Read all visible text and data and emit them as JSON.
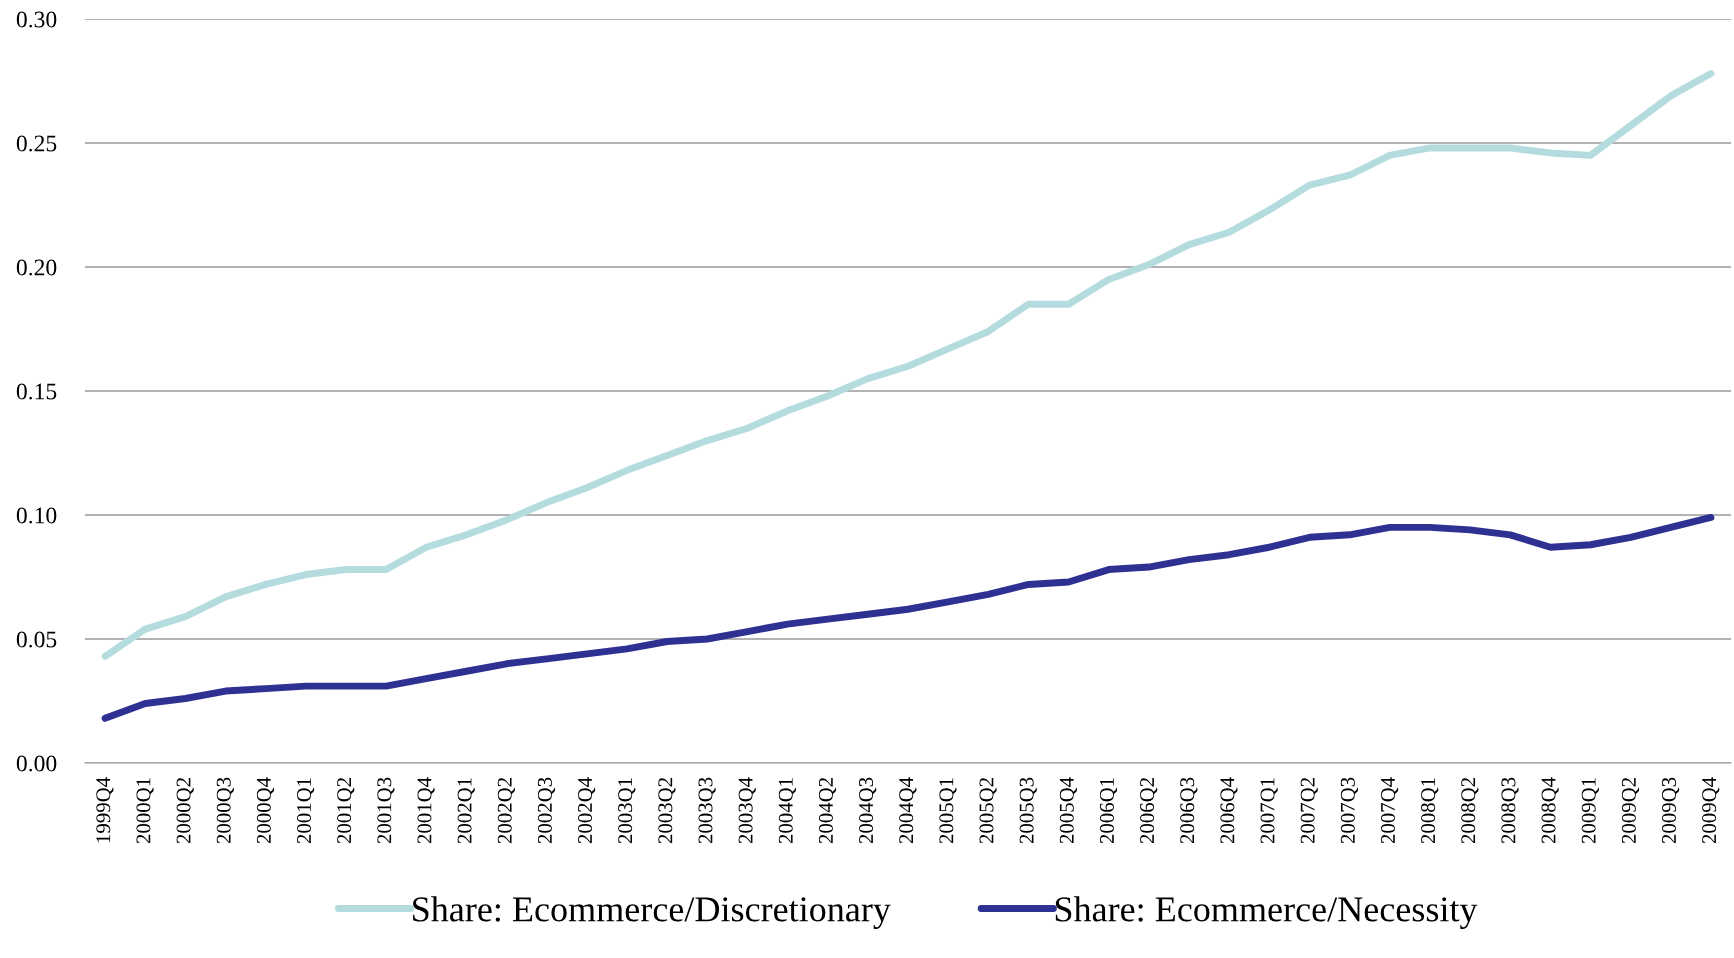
{
  "chart_data": {
    "type": "line",
    "categories": [
      "1999Q4",
      "2000Q1",
      "2000Q2",
      "2000Q3",
      "2000Q4",
      "2001Q1",
      "2001Q2",
      "2001Q3",
      "2001Q4",
      "2002Q1",
      "2002Q2",
      "2002Q3",
      "2002Q4",
      "2003Q1",
      "2003Q2",
      "2003Q3",
      "2003Q4",
      "2004Q1",
      "2004Q2",
      "2004Q3",
      "2004Q4",
      "2005Q1",
      "2005Q2",
      "2005Q3",
      "2005Q4",
      "2006Q1",
      "2006Q2",
      "2006Q3",
      "2006Q4",
      "2007Q1",
      "2007Q2",
      "2007Q3",
      "2007Q4",
      "2008Q1",
      "2008Q2",
      "2008Q3",
      "2008Q4",
      "2009Q1",
      "2009Q2",
      "2009Q3",
      "2009Q4"
    ],
    "series": [
      {
        "name": "Share: Ecommerce/Discretionary",
        "color": "#b4dcdf",
        "values": [
          0.043,
          0.054,
          0.059,
          0.067,
          0.072,
          0.076,
          0.078,
          0.078,
          0.087,
          0.092,
          0.098,
          0.105,
          0.111,
          0.118,
          0.124,
          0.13,
          0.135,
          0.142,
          0.148,
          0.155,
          0.16,
          0.167,
          0.174,
          0.185,
          0.185,
          0.195,
          0.201,
          0.209,
          0.214,
          0.223,
          0.233,
          0.237,
          0.245,
          0.248,
          0.248,
          0.248,
          0.246,
          0.245,
          0.257,
          0.269,
          0.278
        ]
      },
      {
        "name": "Share: Ecommerce/Necessity",
        "color": "#2e3192",
        "values": [
          0.018,
          0.024,
          0.026,
          0.029,
          0.03,
          0.031,
          0.031,
          0.031,
          0.034,
          0.037,
          0.04,
          0.042,
          0.044,
          0.046,
          0.049,
          0.05,
          0.053,
          0.056,
          0.058,
          0.06,
          0.062,
          0.065,
          0.068,
          0.072,
          0.073,
          0.078,
          0.079,
          0.082,
          0.084,
          0.087,
          0.091,
          0.092,
          0.095,
          0.095,
          0.094,
          0.092,
          0.087,
          0.088,
          0.091,
          0.095,
          0.099
        ]
      }
    ],
    "ylim": [
      0,
      0.3
    ],
    "yticks": [
      {
        "value": 0,
        "label": "0.00"
      },
      {
        "value": 0.05,
        "label": "0.05"
      },
      {
        "value": 0.1,
        "label": "0.10"
      },
      {
        "value": 0.15,
        "label": "0.15"
      },
      {
        "value": 0.2,
        "label": "0.20"
      },
      {
        "value": 0.25,
        "label": "0.25"
      },
      {
        "value": 0.3,
        "label": "0.30"
      }
    ],
    "grid": "y",
    "legend": "bottom",
    "line_style": "solid",
    "marker": "none"
  }
}
